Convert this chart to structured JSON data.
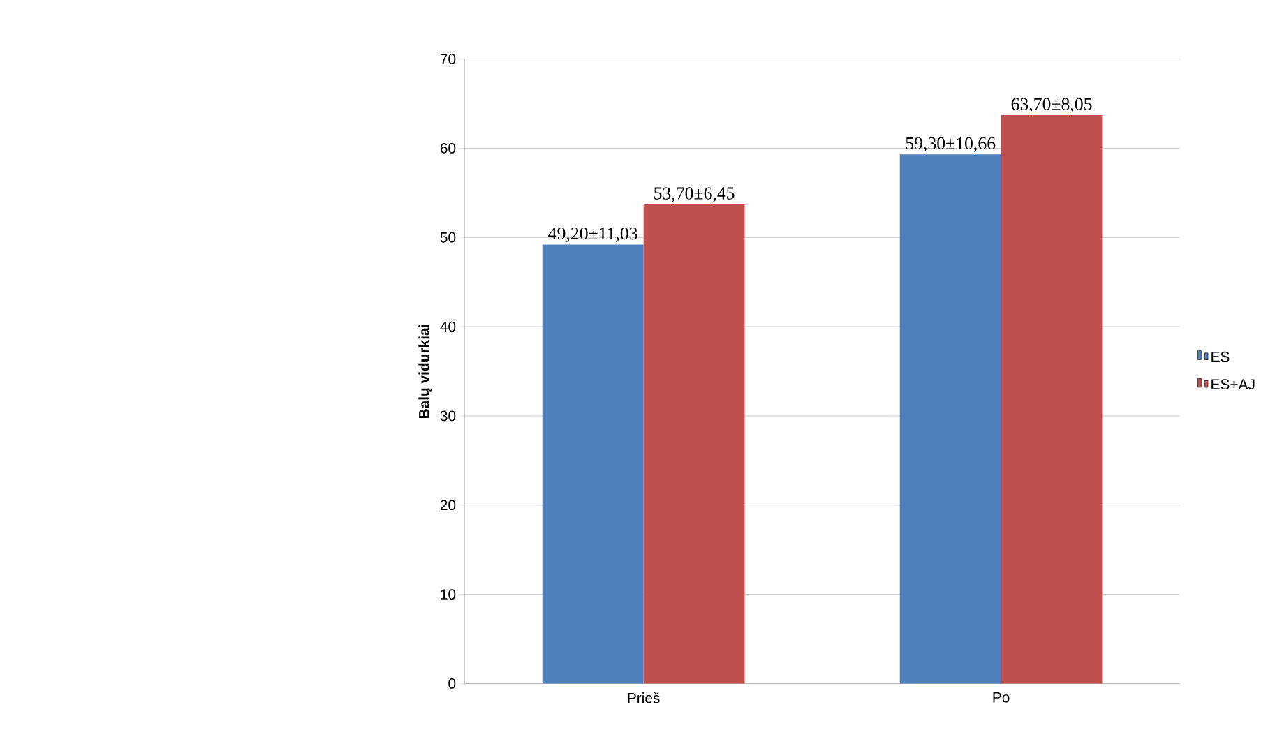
{
  "chart_data": {
    "type": "bar",
    "ylabel": "Balų vidurkiai",
    "categories": [
      "Prieš",
      "Po"
    ],
    "series": [
      {
        "name": "ES",
        "color": "#4f81bd",
        "values": [
          49.2,
          59.3
        ],
        "value_labels": [
          "49,20±11,03",
          "59,30±10,66"
        ]
      },
      {
        "name": "ES+AJ",
        "color": "#c0504d",
        "values": [
          53.7,
          63.7
        ],
        "value_labels": [
          "53,70±6,45",
          "63,70±8,05"
        ]
      }
    ],
    "ylim": [
      0,
      70
    ],
    "yticks": [
      0,
      10,
      20,
      30,
      40,
      50,
      60,
      70
    ],
    "grid": "y",
    "legend": "right"
  }
}
